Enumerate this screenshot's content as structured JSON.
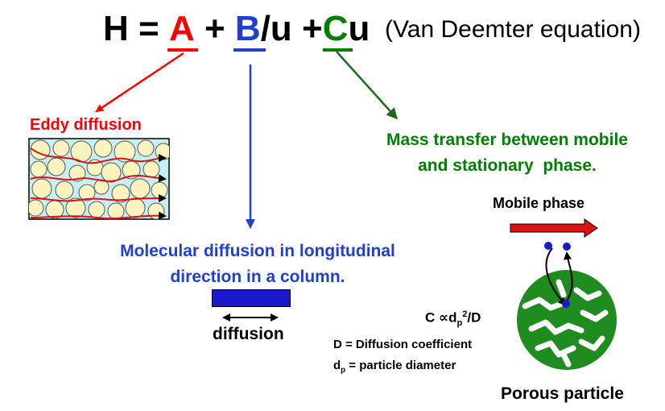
{
  "equation": {
    "h": "H",
    "eq": "=",
    "a": "A",
    "plus1": "+",
    "b": "B",
    "slash_u": "/u",
    "plus2": "+",
    "c": "C",
    "u": "u",
    "note": "(Van Deemter equation)"
  },
  "eddy": {
    "label": "Eddy diffusion"
  },
  "mass_transfer": {
    "line1": "Mass transfer between mobile",
    "line2": "and stationary  phase."
  },
  "molecular": {
    "line1": "Molecular diffusion in longitudinal",
    "line2": "direction in a column."
  },
  "diffusion_box": {
    "label": "diffusion"
  },
  "porous": {
    "mobile_label": "Mobile phase",
    "c_prefix": "C ∝d",
    "c_sub": "p",
    "c_sup": "2",
    "c_suffix": "/D",
    "d_def": "D = Diffusion coefficient",
    "dp_main": "d",
    "dp_sub": "p",
    "dp_rest": " = particle diameter",
    "particle_label": "Porous particle"
  },
  "colors": {
    "a": "#ff0000",
    "b": "#1f3fcc",
    "c": "#008000",
    "particle": "#1e8c1e",
    "packing_bg": "#c6f0f6",
    "bead": "#fbf3c0"
  }
}
